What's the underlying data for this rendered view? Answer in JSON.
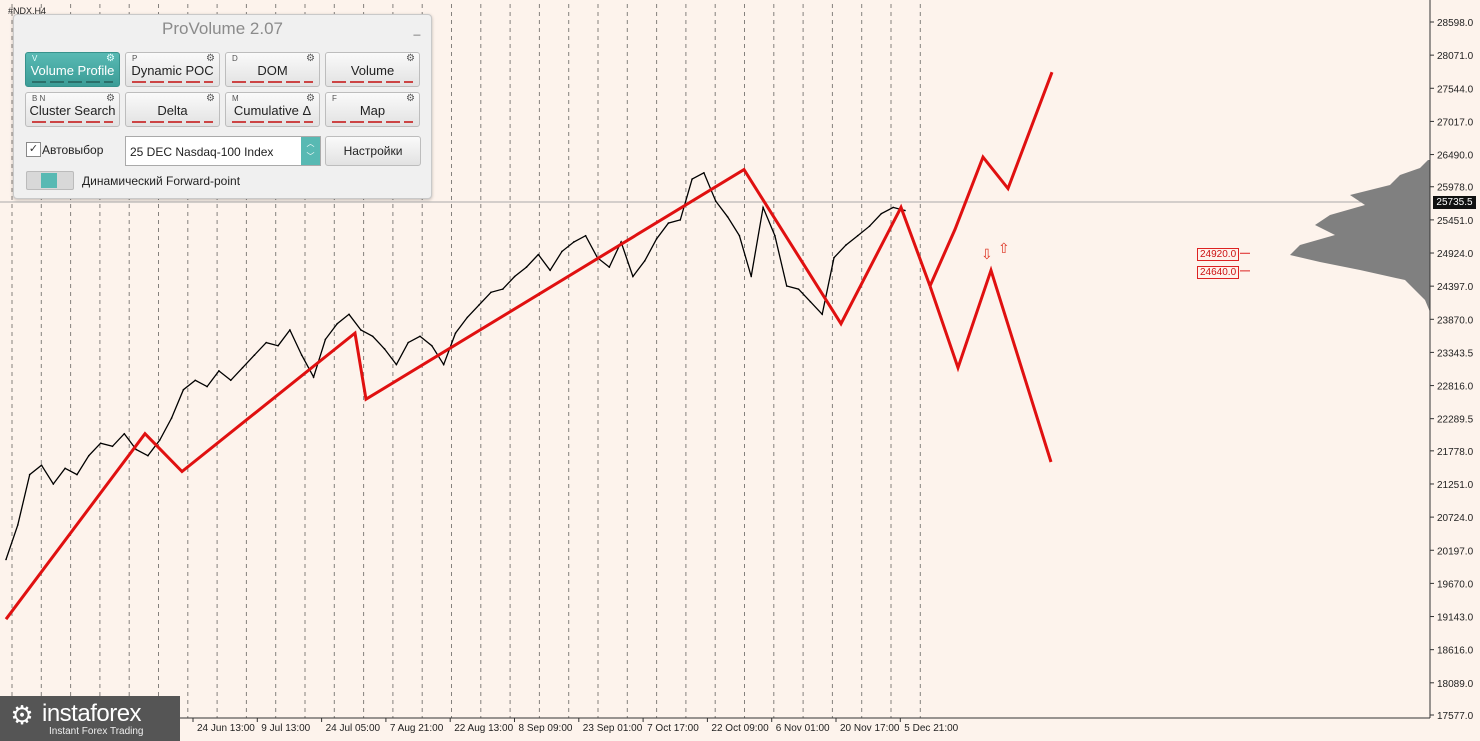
{
  "symbol": "#NDX,H4",
  "panel": {
    "title": "ProVolume 2.07",
    "minimize": "_",
    "buttons": [
      {
        "key": "V",
        "label": "Volume Profile",
        "active": true
      },
      {
        "key": "P",
        "label": "Dynamic POC",
        "active": false
      },
      {
        "key": "D",
        "label": "DOM",
        "active": false
      },
      {
        "key": "",
        "label": "Volume",
        "active": false
      },
      {
        "key": "B  N",
        "label": "Cluster Search",
        "active": false
      },
      {
        "key": "",
        "label": "Delta",
        "active": false
      },
      {
        "key": "M",
        "label": "Cumulative Δ",
        "active": false
      },
      {
        "key": "F",
        "label": "Map",
        "active": false
      }
    ],
    "autoselect_label": "Автовыбор",
    "autoselect_checked": "✓",
    "instrument": "25 DEC Nasdaq-100 Index",
    "settings_label": "Настройки",
    "forward_label": "Динамический Forward-point"
  },
  "price_axis": {
    "ticks": [
      "28598.0",
      "28071.0",
      "27544.0",
      "27017.0",
      "26490.0",
      "25978.0",
      "25451.0",
      "24924.0",
      "24397.0",
      "23870.0",
      "23343.5",
      "22816.0",
      "22289.5",
      "21778.0",
      "21251.0",
      "20724.0",
      "20197.0",
      "19670.0",
      "19143.0",
      "18616.0",
      "18089.0",
      "17577.0"
    ],
    "current_price": "25735.5"
  },
  "time_axis": {
    "labels": [
      "24 Jun 13:00",
      "9 Jul 13:00",
      "24 Jul 05:00",
      "7 Aug 21:00",
      "22 Aug 13:00",
      "8 Sep 09:00",
      "23 Sep 01:00",
      "7 Oct 17:00",
      "22 Oct 09:00",
      "6 Nov 01:00",
      "20 Nov 17:00",
      "5 Dec 21:00"
    ]
  },
  "levels": [
    {
      "label": "24920.0",
      "price": 24920
    },
    {
      "label": "24640.0",
      "price": 24640
    }
  ],
  "logo": {
    "brand": "instaforex",
    "tagline": "Instant Forex Trading"
  },
  "colors": {
    "background": "#fdf3ec",
    "accent": "#58b9b3",
    "wave": "#e01010",
    "price": "#000000",
    "profile": "#808080"
  },
  "chart_data": {
    "type": "line",
    "title": "",
    "xlabel": "",
    "ylabel": "",
    "ylim": [
      17577,
      28598
    ],
    "series": [
      {
        "values": [
          20050,
          20600,
          21400,
          21550,
          21250,
          21500,
          21400,
          21700,
          21900,
          21850,
          22050,
          21800,
          21700,
          21950,
          22300,
          22750,
          22900,
          22800,
          23050,
          22900,
          23100,
          23300,
          23500,
          23450,
          23700,
          23300,
          22950,
          23550,
          23800,
          23950,
          23700,
          23600,
          23400,
          23150,
          23500,
          23600,
          23450,
          23150,
          23650,
          23900,
          24100,
          24300,
          24350,
          24550,
          24700,
          24900,
          24650,
          24950,
          25100,
          25200,
          24850,
          24700,
          25100,
          24550,
          24800,
          25150,
          25400,
          25450,
          26100,
          26200,
          25750,
          25500,
          25200,
          24550,
          25650,
          25200,
          24400,
          24350,
          24150,
          23950,
          24850,
          25050,
          25200,
          25350,
          25550,
          25650,
          25600
        ]
      }
    ],
    "wave_path": [
      19100,
      22050,
      21450,
      23650,
      22600,
      26250,
      23800,
      25650,
      24400
    ],
    "forecast_up": [
      24400,
      25300,
      26450,
      25950,
      27800
    ],
    "forecast_down": [
      24400,
      23100,
      24650,
      21600
    ]
  }
}
